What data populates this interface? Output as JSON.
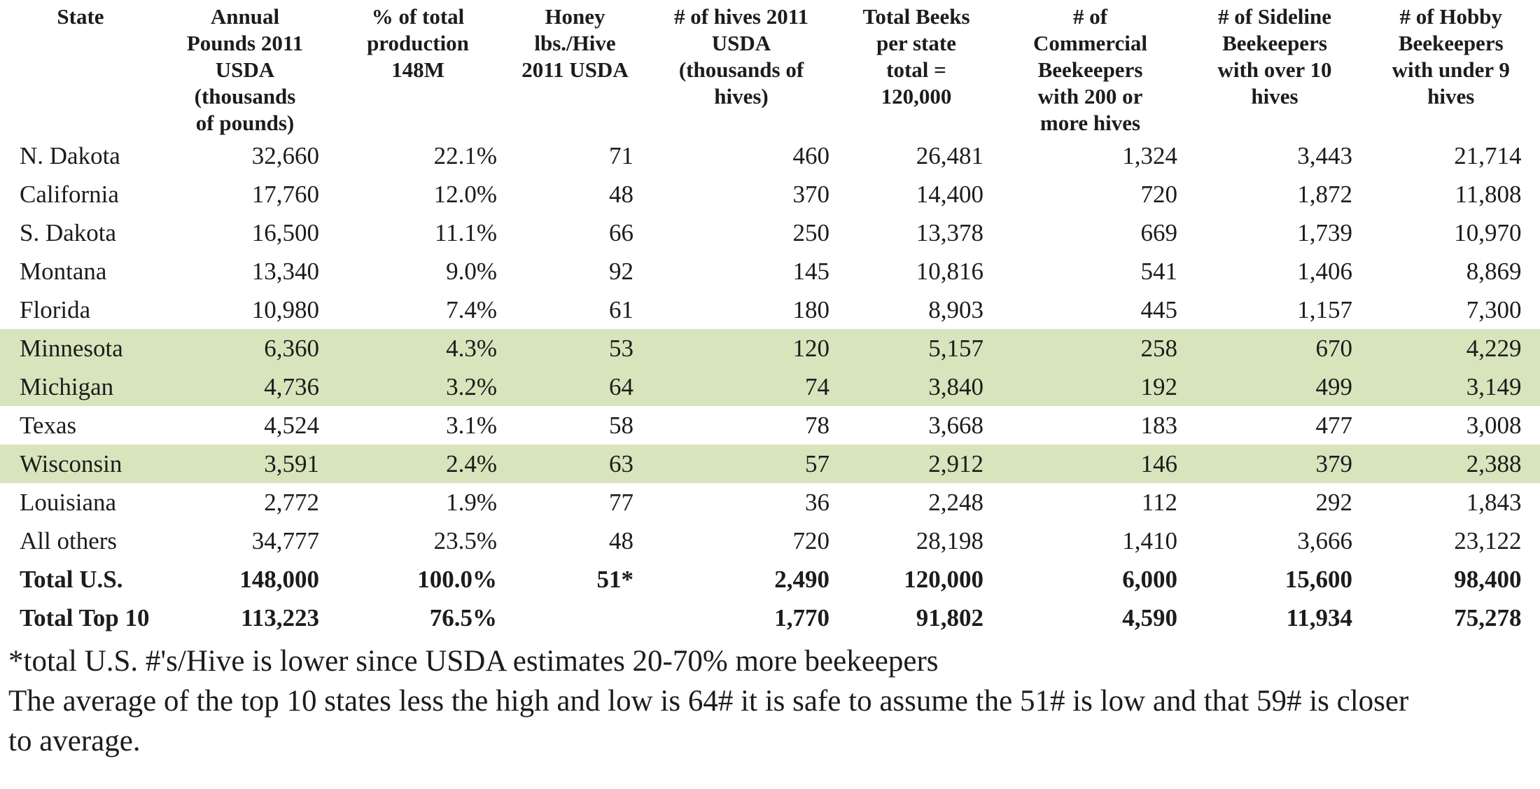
{
  "table": {
    "columns": [
      {
        "label": "State"
      },
      {
        "label": "Annual\nPounds 2011\nUSDA\n(thousands\nof pounds)"
      },
      {
        "label": "% of total\nproduction\n148M"
      },
      {
        "label": "Honey\nlbs./Hive\n2011 USDA"
      },
      {
        "label": "# of hives 2011\nUSDA\n(thousands of\nhives)"
      },
      {
        "label": "Total Beeks\nper state\ntotal =\n120,000"
      },
      {
        "label": "# of\nCommercial\nBeekeepers\nwith 200 or\nmore hives"
      },
      {
        "label": "# of Sideline\nBeekeepers\nwith over 10\nhives"
      },
      {
        "label": "# of Hobby\nBeekeepers\nwith under 9\nhives"
      }
    ],
    "rows": [
      {
        "state": "N. Dakota",
        "values": [
          "32,660",
          "22.1%",
          "71",
          "460",
          "26,481",
          "1,324",
          "3,443",
          "21,714"
        ],
        "highlight": false,
        "total": false
      },
      {
        "state": "California",
        "values": [
          "17,760",
          "12.0%",
          "48",
          "370",
          "14,400",
          "720",
          "1,872",
          "11,808"
        ],
        "highlight": false,
        "total": false
      },
      {
        "state": "S. Dakota",
        "values": [
          "16,500",
          "11.1%",
          "66",
          "250",
          "13,378",
          "669",
          "1,739",
          "10,970"
        ],
        "highlight": false,
        "total": false
      },
      {
        "state": "Montana",
        "values": [
          "13,340",
          "9.0%",
          "92",
          "145",
          "10,816",
          "541",
          "1,406",
          "8,869"
        ],
        "highlight": false,
        "total": false
      },
      {
        "state": "Florida",
        "values": [
          "10,980",
          "7.4%",
          "61",
          "180",
          "8,903",
          "445",
          "1,157",
          "7,300"
        ],
        "highlight": false,
        "total": false
      },
      {
        "state": "Minnesota",
        "values": [
          "6,360",
          "4.3%",
          "53",
          "120",
          "5,157",
          "258",
          "670",
          "4,229"
        ],
        "highlight": true,
        "total": false
      },
      {
        "state": "Michigan",
        "values": [
          "4,736",
          "3.2%",
          "64",
          "74",
          "3,840",
          "192",
          "499",
          "3,149"
        ],
        "highlight": true,
        "total": false
      },
      {
        "state": "Texas",
        "values": [
          "4,524",
          "3.1%",
          "58",
          "78",
          "3,668",
          "183",
          "477",
          "3,008"
        ],
        "highlight": false,
        "total": false
      },
      {
        "state": "Wisconsin",
        "values": [
          "3,591",
          "2.4%",
          "63",
          "57",
          "2,912",
          "146",
          "379",
          "2,388"
        ],
        "highlight": true,
        "total": false
      },
      {
        "state": "Louisiana",
        "values": [
          "2,772",
          "1.9%",
          "77",
          "36",
          "2,248",
          "112",
          "292",
          "1,843"
        ],
        "highlight": false,
        "total": false
      },
      {
        "state": "All others",
        "values": [
          "34,777",
          "23.5%",
          "48",
          "720",
          "28,198",
          "1,410",
          "3,666",
          "23,122"
        ],
        "highlight": false,
        "total": false
      },
      {
        "state": "Total U.S.",
        "values": [
          "148,000",
          "100.0%",
          "51*",
          "2,490",
          "120,000",
          "6,000",
          "15,600",
          "98,400"
        ],
        "highlight": false,
        "total": true
      },
      {
        "state": "Total Top 10",
        "values": [
          "113,223",
          "76.5%",
          "",
          "1,770",
          "91,802",
          "4,590",
          "11,934",
          "75,278"
        ],
        "highlight": false,
        "total": true
      }
    ]
  },
  "footnotes": [
    "*total U.S. #'s/Hive is lower since USDA estimates 20-70% more beekeepers",
    "The average of the top 10 states less the high and low is 64# it is safe to assume the 51# is low and that 59# is closer\nto average."
  ],
  "colors": {
    "highlight_row": "#d8e4bc",
    "text": "#1c1c1c",
    "table_border": "#c2c2c2"
  }
}
